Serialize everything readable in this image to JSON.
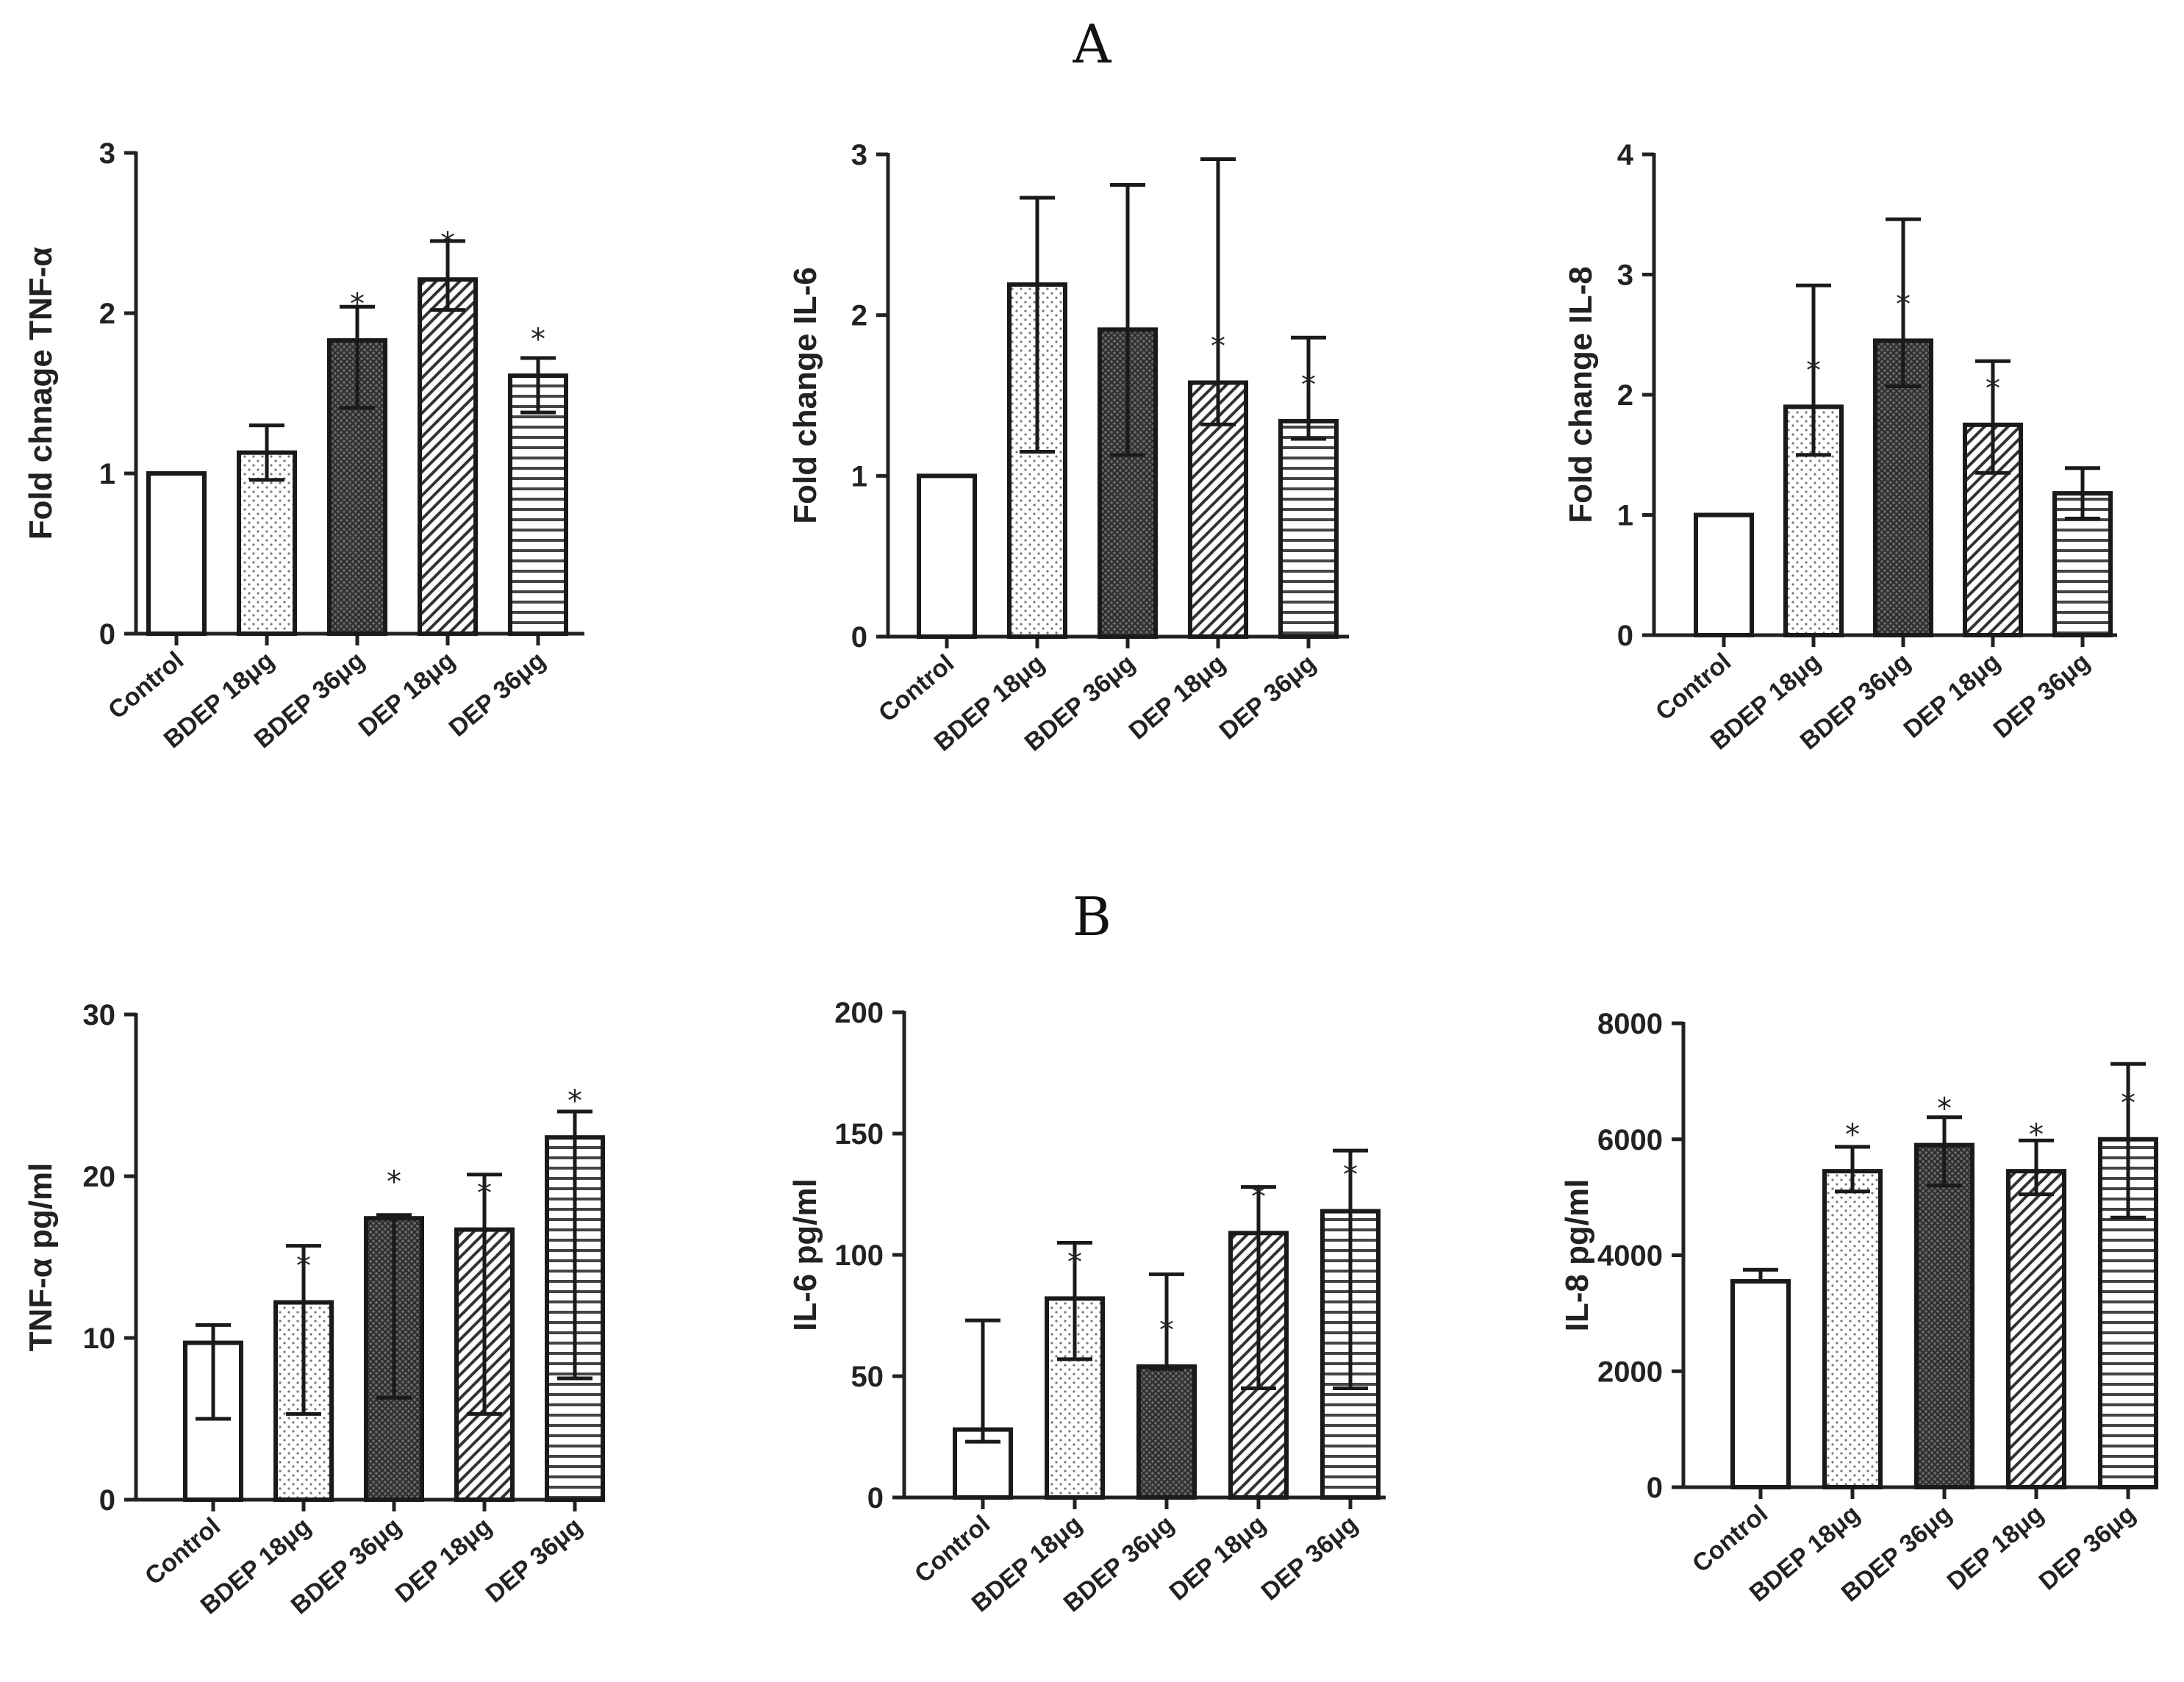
{
  "figure": {
    "panel_a": "A",
    "panel_b": "B"
  },
  "chart_data": [
    {
      "type": "bar",
      "panel": "A",
      "ylabel": "Fold chnage TNF-α",
      "categories": [
        "Control",
        "BDEP 18μg",
        "BDEP 36μg",
        "DEP 18μg",
        "DEP 36μg"
      ],
      "values": [
        1.0,
        1.13,
        1.83,
        2.21,
        1.61
      ],
      "error_upper": [
        1.0,
        1.3,
        2.04,
        2.45,
        1.72
      ],
      "error_lower": [
        1.0,
        0.96,
        1.41,
        2.02,
        1.38
      ],
      "significant": [
        false,
        false,
        true,
        true,
        true
      ],
      "ylim": [
        0,
        3
      ],
      "yticks": [
        0,
        1,
        2,
        3
      ],
      "ytick_labels": [
        "0",
        "1",
        "2",
        "3"
      ]
    },
    {
      "type": "bar",
      "panel": "A",
      "ylabel": "Fold change IL-6",
      "categories": [
        "Control",
        "BDEP 18μg",
        "BDEP 36μg",
        "DEP 18μg",
        "DEP 36μg"
      ],
      "values": [
        1.0,
        2.19,
        1.91,
        1.58,
        1.34
      ],
      "error_upper": [
        1.0,
        2.73,
        2.81,
        2.97,
        1.86
      ],
      "error_lower": [
        1.0,
        1.15,
        1.13,
        1.32,
        1.23
      ],
      "significant": [
        false,
        false,
        false,
        true,
        true
      ],
      "ylim": [
        0,
        3
      ],
      "yticks": [
        0,
        1,
        2,
        3
      ],
      "ytick_labels": [
        "0",
        "1",
        "2",
        "3"
      ]
    },
    {
      "type": "bar",
      "panel": "A",
      "ylabel": "Fold change IL-8",
      "categories": [
        "Control",
        "BDEP 18μg",
        "BDEP 36μg",
        "DEP 18μg",
        "DEP 36μg"
      ],
      "values": [
        1.0,
        1.9,
        2.45,
        1.75,
        1.18
      ],
      "error_upper": [
        1.0,
        2.91,
        3.46,
        2.28,
        1.39
      ],
      "error_lower": [
        1.0,
        1.5,
        2.07,
        1.35,
        0.97
      ],
      "significant": [
        false,
        true,
        true,
        true,
        false
      ],
      "ylim": [
        0,
        4
      ],
      "yticks": [
        0,
        1,
        2,
        3,
        4
      ],
      "ytick_labels": [
        "0",
        "1",
        "2",
        "3",
        "4"
      ]
    },
    {
      "type": "bar",
      "panel": "B",
      "ylabel": "TNF-α pg/ml",
      "categories": [
        "Control",
        "BDEP 18μg",
        "BDEP 36μg",
        "DEP 18μg",
        "DEP 36μg"
      ],
      "values": [
        9.7,
        12.2,
        17.4,
        16.7,
        22.4
      ],
      "error_upper": [
        10.8,
        15.7,
        17.6,
        20.1,
        24.0
      ],
      "error_lower": [
        5.0,
        5.3,
        6.3,
        5.3,
        7.5
      ],
      "significant": [
        false,
        true,
        true,
        true,
        true
      ],
      "ylim": [
        0,
        30
      ],
      "yticks": [
        0,
        10,
        20,
        30
      ],
      "ytick_labels": [
        "0",
        "10",
        "20",
        "30"
      ]
    },
    {
      "type": "bar",
      "panel": "B",
      "ylabel": "IL-6 pg/ml",
      "categories": [
        "Control",
        "BDEP 18μg",
        "BDEP 36μg",
        "DEP 18μg",
        "DEP 36μg"
      ],
      "values": [
        28,
        82,
        54,
        109,
        118
      ],
      "error_upper": [
        73,
        105,
        92,
        128,
        143
      ],
      "error_lower": [
        23,
        57,
        53,
        45,
        45
      ],
      "significant": [
        false,
        true,
        true,
        true,
        true
      ],
      "ylim": [
        0,
        200
      ],
      "yticks": [
        0,
        50,
        100,
        150,
        200
      ],
      "ytick_labels": [
        "0",
        "50",
        "100",
        "150",
        "200"
      ]
    },
    {
      "type": "bar",
      "panel": "B",
      "ylabel": "IL-8 pg/ml",
      "categories": [
        "Control",
        "BDEP 18μg",
        "BDEP 36μg",
        "DEP 18μg",
        "DEP 36μg"
      ],
      "values": [
        3550,
        5450,
        5900,
        5450,
        6000
      ],
      "error_upper": [
        3750,
        5870,
        6380,
        5980,
        7300
      ],
      "error_lower": [
        3550,
        5100,
        5200,
        5050,
        4650
      ],
      "significant": [
        false,
        true,
        true,
        true,
        true
      ],
      "ylim": [
        0,
        8000
      ],
      "yticks": [
        0,
        2000,
        4000,
        6000,
        8000
      ],
      "ytick_labels": [
        "0",
        "2000",
        "4000",
        "6000",
        "8000"
      ]
    }
  ]
}
